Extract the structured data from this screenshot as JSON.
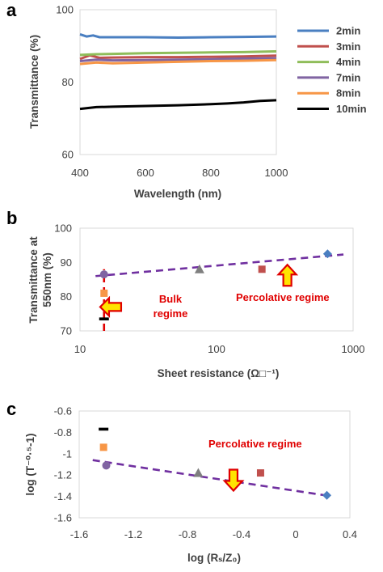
{
  "chart_data": [
    {
      "panel": "a",
      "type": "line",
      "xlabel": "Wavelength (nm)",
      "ylabel": "Transmittance (%)",
      "xlim": [
        400,
        1000
      ],
      "ylim": [
        60,
        100
      ],
      "xticks": [
        "400",
        "600",
        "800",
        "1000"
      ],
      "yticks": [
        "60",
        "80",
        "100"
      ],
      "grid": false,
      "legend_position": "right",
      "series": [
        {
          "name": "2min",
          "color": "#4a7fc1",
          "x": [
            400,
            420,
            440,
            460,
            500,
            600,
            700,
            800,
            900,
            1000
          ],
          "y": [
            93.2,
            92.6,
            92.9,
            92.4,
            92.4,
            92.4,
            92.3,
            92.4,
            92.5,
            92.6
          ]
        },
        {
          "name": "3min",
          "color": "#c0504d",
          "x": [
            400,
            430,
            460,
            500,
            600,
            700,
            800,
            900,
            1000
          ],
          "y": [
            86.4,
            87.4,
            86.7,
            86.8,
            86.9,
            86.9,
            87.0,
            87.1,
            87.3
          ]
        },
        {
          "name": "4min",
          "color": "#8fbd5a",
          "x": [
            400,
            450,
            500,
            600,
            700,
            800,
            900,
            1000
          ],
          "y": [
            87.5,
            87.7,
            87.8,
            88.0,
            88.1,
            88.2,
            88.3,
            88.5
          ]
        },
        {
          "name": "7min",
          "color": "#8064a2",
          "x": [
            400,
            450,
            500,
            600,
            700,
            800,
            900,
            1000
          ],
          "y": [
            85.8,
            86.2,
            86.0,
            86.1,
            86.2,
            86.3,
            86.5,
            86.6
          ]
        },
        {
          "name": "8min",
          "color": "#f79646",
          "x": [
            400,
            450,
            500,
            600,
            700,
            800,
            900,
            1000
          ],
          "y": [
            85.0,
            85.4,
            85.2,
            85.4,
            85.6,
            85.8,
            85.9,
            86.1
          ]
        },
        {
          "name": "10min",
          "color": "#000000",
          "x": [
            400,
            450,
            500,
            600,
            700,
            800,
            850,
            900,
            950,
            1000
          ],
          "y": [
            72.6,
            73.1,
            73.2,
            73.4,
            73.6,
            73.9,
            74.1,
            74.4,
            74.8,
            75.0
          ]
        }
      ]
    },
    {
      "panel": "b",
      "type": "scatter",
      "xlabel": "Sheet resistance (Ω□⁻¹)",
      "ylabel": "Transmittance at 550nm (%)",
      "ylabel_lines": [
        "Transmittance at",
        "550nm (%)"
      ],
      "xscale": "log",
      "xlim": [
        10,
        1000
      ],
      "ylim": [
        70,
        100
      ],
      "xticks": [
        "10",
        "100",
        "1000"
      ],
      "yticks": [
        "70",
        "80",
        "90",
        "100"
      ],
      "grid": false,
      "points": [
        {
          "x": 15,
          "y": 73.5,
          "color": "#000000",
          "marker": "dash"
        },
        {
          "x": 15,
          "y": 81.0,
          "color": "#f79646",
          "marker": "square"
        },
        {
          "x": 15,
          "y": 86.5,
          "color": "#8064a2",
          "marker": "circle"
        },
        {
          "x": 75,
          "y": 88.0,
          "color": "#7f7f7f",
          "marker": "triangle"
        },
        {
          "x": 215,
          "y": 88.0,
          "color": "#c0504d",
          "marker": "square"
        },
        {
          "x": 650,
          "y": 92.5,
          "color": "#4a7fc1",
          "marker": "diamond"
        }
      ],
      "fit_lines": [
        {
          "kind": "percolative",
          "color": "#7030a0",
          "x": [
            13,
            850
          ],
          "y": [
            86.0,
            92.3
          ]
        },
        {
          "kind": "bulk",
          "color": "#e00000",
          "x": [
            15,
            15
          ],
          "y": [
            70,
            88
          ]
        }
      ],
      "annotations": [
        {
          "text_lines": [
            "Bulk",
            "regime"
          ],
          "color": "#e00000"
        },
        {
          "text": "Percolative regime",
          "color": "#e00000"
        }
      ],
      "arrows": [
        {
          "direction": "left",
          "at": [
            17,
            77
          ]
        },
        {
          "direction": "up",
          "at": [
            330,
            86
          ]
        }
      ]
    },
    {
      "panel": "c",
      "type": "scatter",
      "xlabel": "log (Rₛ/Z₀)",
      "ylabel": "log (T⁻⁰·⁵-1)",
      "xlim": [
        -1.6,
        0.4
      ],
      "ylim": [
        -1.6,
        -0.6
      ],
      "xticks": [
        "-1.6",
        "-1.2",
        "-0.8",
        "-0.4",
        "0",
        "0.4"
      ],
      "yticks": [
        "-1.6",
        "-1.4",
        "-1.2",
        "-1",
        "-0.8",
        "-0.6"
      ],
      "grid": false,
      "points": [
        {
          "x": -1.42,
          "y": -0.77,
          "color": "#000000",
          "marker": "dash"
        },
        {
          "x": -1.42,
          "y": -0.94,
          "color": "#f79646",
          "marker": "square"
        },
        {
          "x": -1.4,
          "y": -1.11,
          "color": "#8064a2",
          "marker": "circle"
        },
        {
          "x": -0.72,
          "y": -1.18,
          "color": "#7f7f7f",
          "marker": "triangle"
        },
        {
          "x": -0.26,
          "y": -1.18,
          "color": "#c0504d",
          "marker": "square"
        },
        {
          "x": 0.23,
          "y": -1.39,
          "color": "#4a7fc1",
          "marker": "diamond"
        }
      ],
      "fit_lines": [
        {
          "kind": "percolative",
          "color": "#7030a0",
          "x": [
            -1.5,
            0.22
          ],
          "y": [
            -1.06,
            -1.39
          ]
        }
      ],
      "annotations": [
        {
          "text": "Percolative regime",
          "color": "#e00000"
        }
      ],
      "arrows": [
        {
          "direction": "down",
          "at": [
            -0.46,
            -1.24
          ]
        }
      ]
    }
  ]
}
